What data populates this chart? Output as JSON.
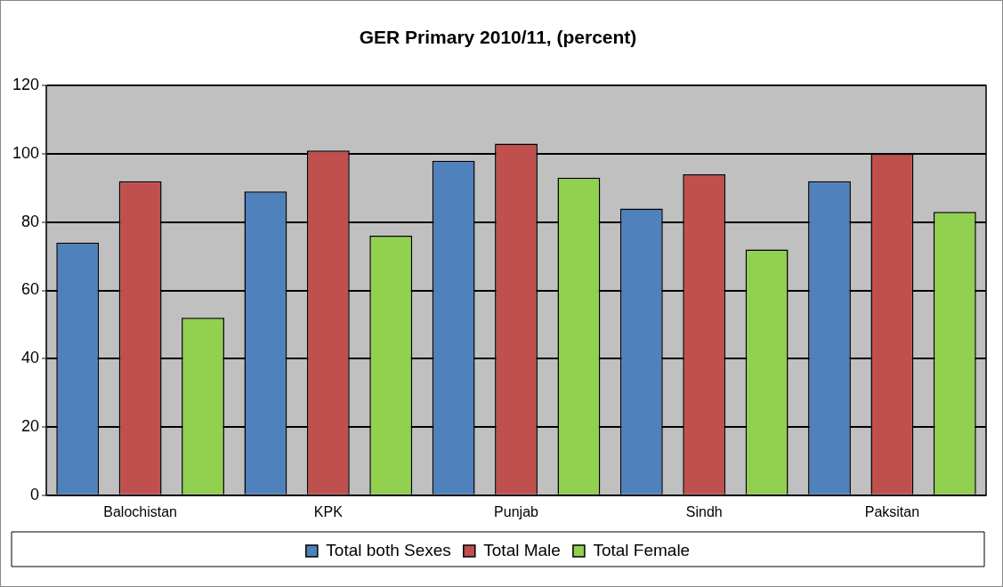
{
  "chart_data": {
    "type": "bar",
    "title": "GER Primary 2010/11, (percent)",
    "categories": [
      "Balochistan",
      "KPK",
      "Punjab",
      "Sindh",
      "Paksitan"
    ],
    "series": [
      {
        "name": "Total both Sexes",
        "color": "#4f81bd",
        "values": [
          74,
          89,
          98,
          84,
          92
        ]
      },
      {
        "name": "Total Male",
        "color": "#c0504d",
        "values": [
          92,
          101,
          103,
          94,
          100
        ]
      },
      {
        "name": "Total Female",
        "color": "#92d050",
        "values": [
          52,
          76,
          93,
          72,
          83
        ]
      }
    ],
    "ylim": [
      0,
      120
    ],
    "yticks": [
      0,
      20,
      40,
      60,
      80,
      100,
      120
    ],
    "grid": "y",
    "legend": "bottom"
  }
}
